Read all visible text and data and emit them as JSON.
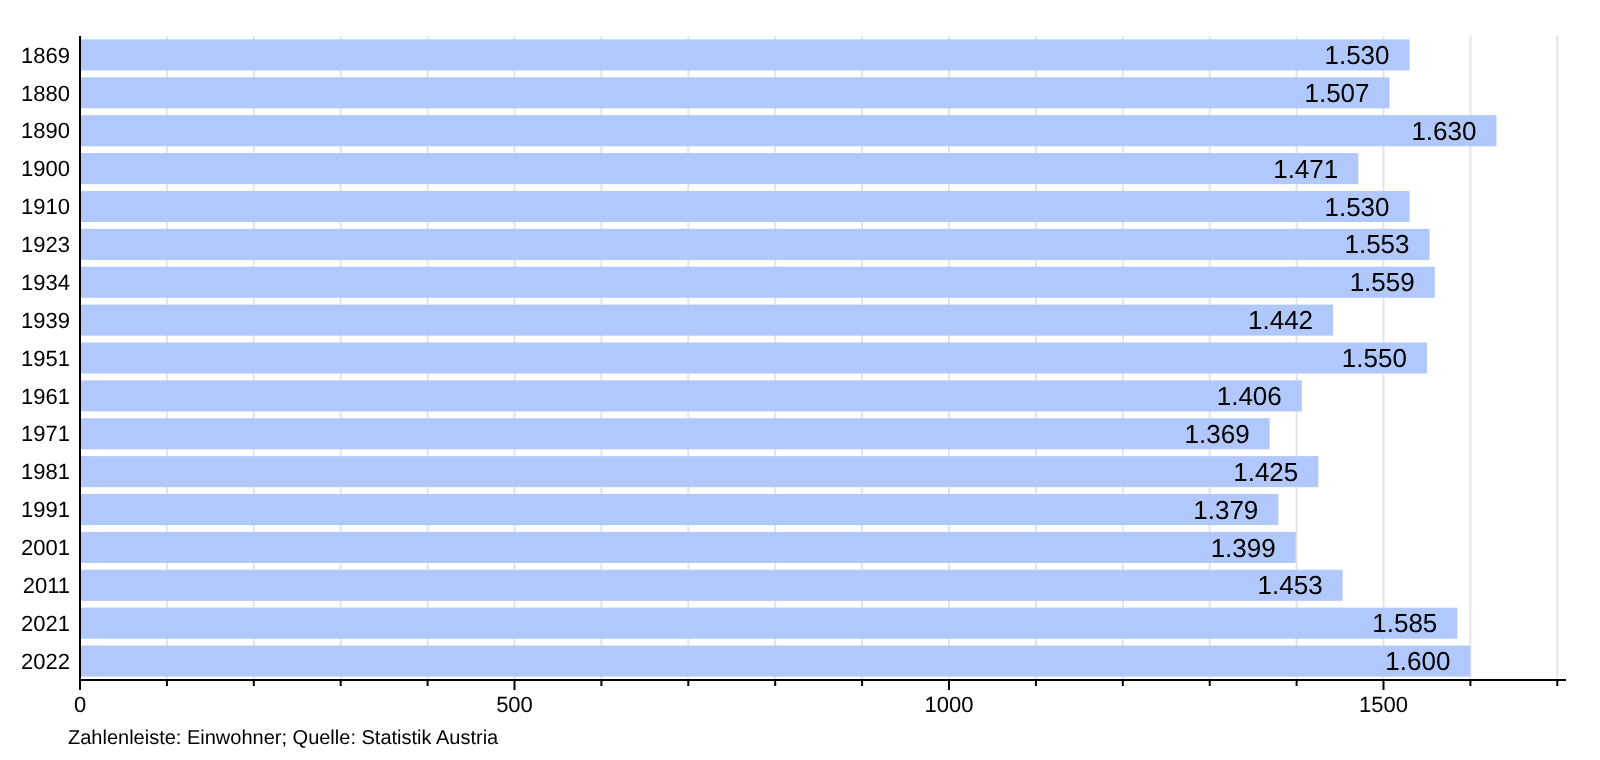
{
  "chart_data": {
    "type": "bar",
    "orientation": "horizontal",
    "categories": [
      "1869",
      "1880",
      "1890",
      "1900",
      "1910",
      "1923",
      "1934",
      "1939",
      "1951",
      "1961",
      "1971",
      "1981",
      "1991",
      "2001",
      "2011",
      "2021",
      "2022"
    ],
    "values": [
      1530,
      1507,
      1630,
      1471,
      1530,
      1553,
      1559,
      1442,
      1550,
      1406,
      1369,
      1425,
      1379,
      1399,
      1453,
      1585,
      1600
    ],
    "value_labels": [
      "1.530",
      "1.507",
      "1.630",
      "1.471",
      "1.530",
      "1.553",
      "1.559",
      "1.442",
      "1.550",
      "1.406",
      "1.369",
      "1.425",
      "1.379",
      "1.399",
      "1.453",
      "1.585",
      "1.600"
    ],
    "color": "#b0c8fc",
    "xlim": [
      0,
      1710
    ],
    "xticks": [
      0,
      {
        "value": 100,
        "label": null
      },
      {
        "value": 200,
        "label": null
      },
      {
        "value": 300,
        "label": null
      },
      {
        "value": 400,
        "label": null
      },
      500,
      {
        "value": 600,
        "label": null
      },
      {
        "value": 700,
        "label": null
      },
      {
        "value": 800,
        "label": null
      },
      {
        "value": 900,
        "label": null
      },
      1000,
      {
        "value": 1100,
        "label": null
      },
      {
        "value": 1200,
        "label": null
      },
      {
        "value": 1300,
        "label": null
      },
      {
        "value": 1400,
        "label": null
      },
      1500,
      {
        "value": 1600,
        "label": null
      },
      {
        "value": 1700,
        "label": null
      }
    ],
    "grid": "x",
    "annotations": [
      "Zahlenleiste: Einwohner; Quelle: Statistik Austria"
    ]
  }
}
